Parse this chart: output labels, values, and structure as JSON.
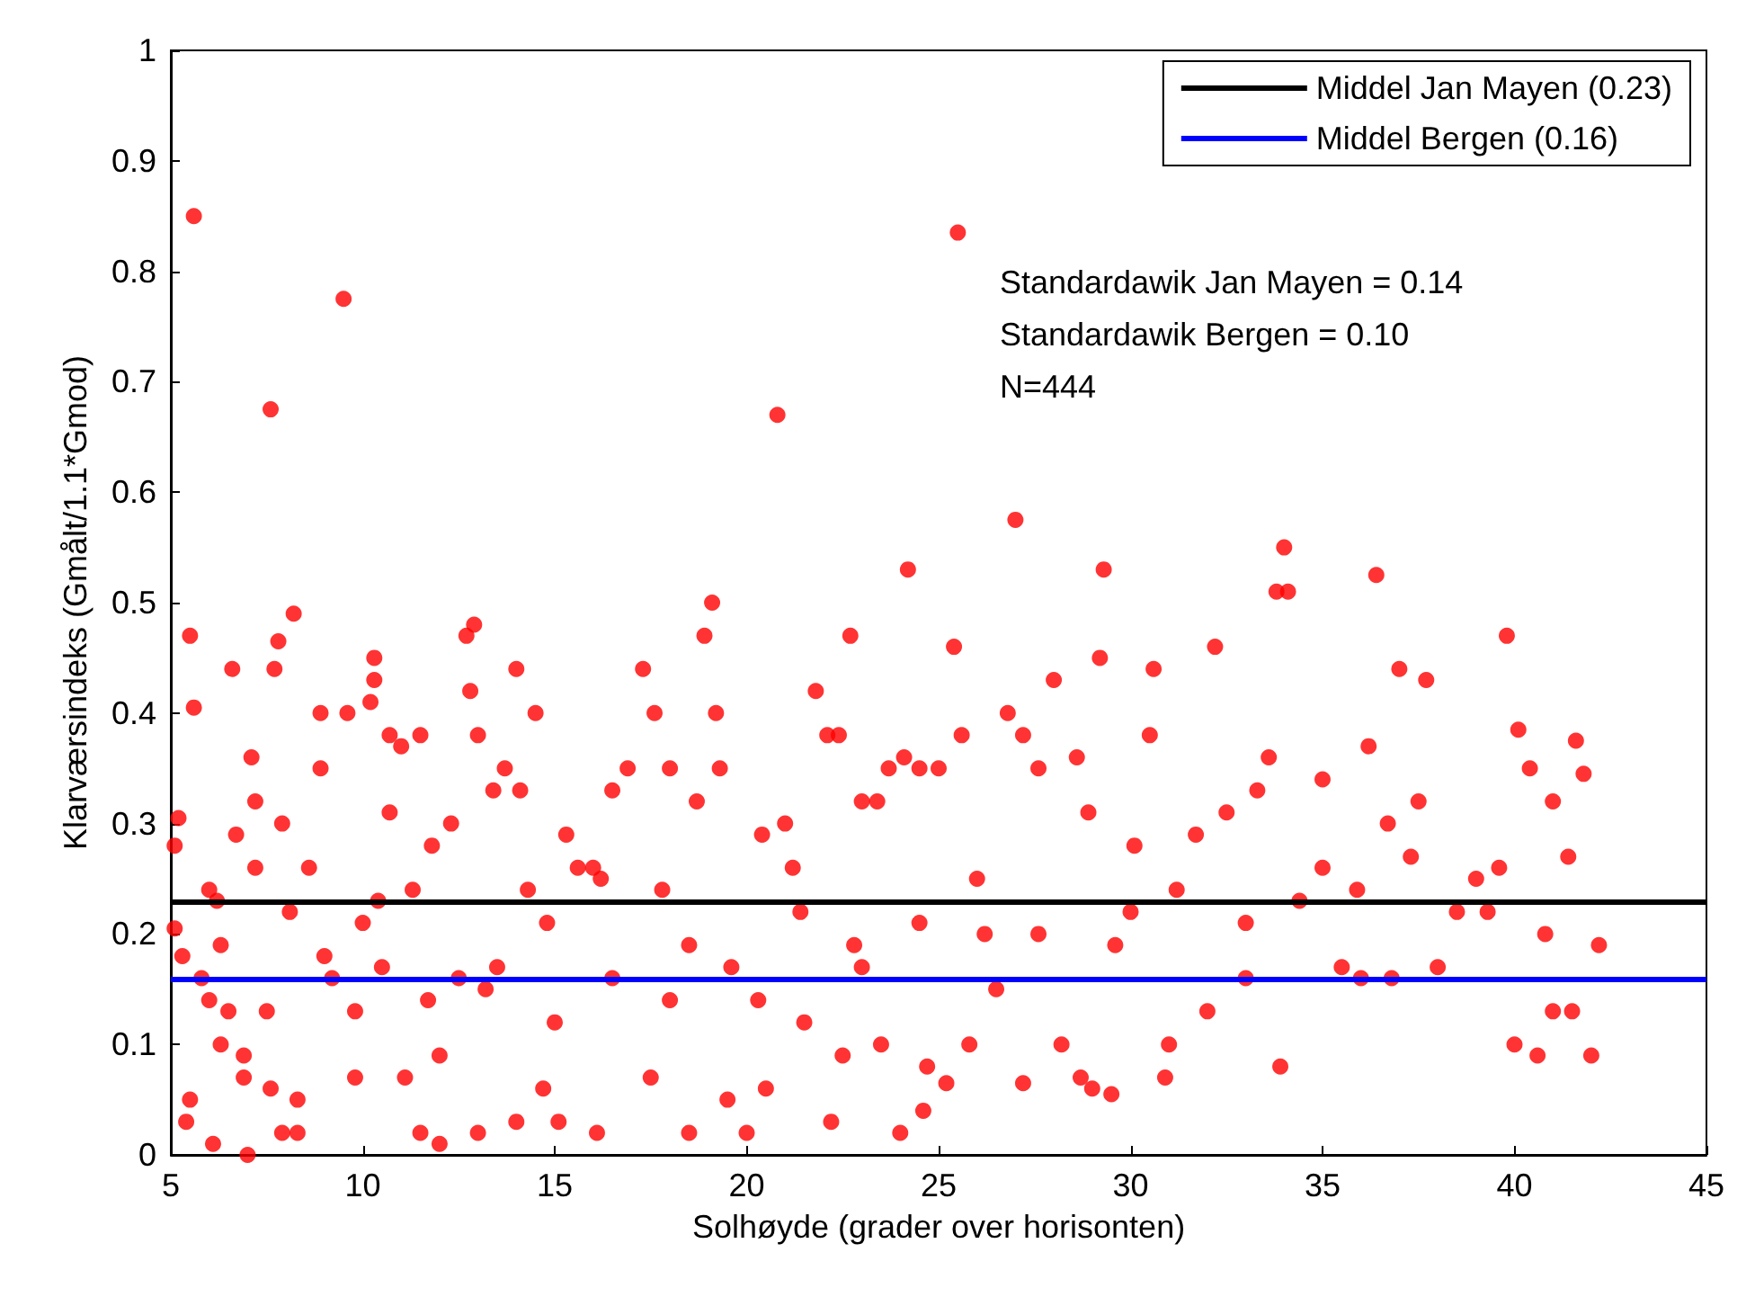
{
  "chart_data": {
    "type": "scatter",
    "xlabel": "Solhøyde (grader over horisonten)",
    "ylabel": "Klarværsindeks (Gmålt/1.1*Gmod)",
    "series": [
      {
        "color": "#ff0000",
        "x": [
          5.1,
          5.2,
          5.1,
          5.3,
          5.5,
          5.6,
          5.6,
          5.5,
          5.4,
          5.8,
          6,
          6,
          6.1,
          6.2,
          6.3,
          6.3,
          6.5,
          6.6,
          6.7,
          6.9,
          7.0,
          7.1,
          7.2,
          7.2,
          7.6,
          7.6,
          7.7,
          7.8,
          7.9,
          7.9,
          8.1,
          8.2,
          8.3,
          8.6,
          8.9,
          8.9,
          9.2,
          9.5,
          9.6,
          9.8,
          9.8,
          10,
          10.2,
          10.3,
          10.3,
          10.4,
          10.5,
          10.7,
          10.7,
          11,
          11.1,
          11.3,
          11.5,
          11.8,
          12,
          12.3,
          12.5,
          12.7,
          12.8,
          12.9,
          13,
          13.2,
          13.4,
          13.7,
          14,
          14.1,
          14.3,
          14.5,
          14.7,
          15,
          15.1,
          15.3,
          15.6,
          16,
          16.2,
          16.5,
          16.9,
          17.3,
          17.6,
          17.8,
          18,
          18.5,
          18.7,
          18.9,
          19.1,
          19.2,
          19.3,
          19.6,
          20,
          20.4,
          20.8,
          21.0,
          21.2,
          21.4,
          21.8,
          22.1,
          22.4,
          22.5,
          22.7,
          23,
          23.4,
          23.7,
          24.1,
          24.2,
          24.5,
          24.6,
          25,
          25.4,
          25.5,
          25.6,
          25.8,
          26,
          26.5,
          26.8,
          27.0,
          27.2,
          27.6,
          28,
          28.2,
          28.6,
          28.9,
          29.2,
          29.3,
          29.6,
          30.1,
          30.5,
          30.6,
          31,
          31.7,
          32.2,
          32.5,
          33,
          33.3,
          33.6,
          33.8,
          34,
          34.1,
          34.4,
          35,
          35.5,
          36.2,
          36.4,
          36.7,
          37.0,
          37.3,
          37.7,
          38,
          38.5,
          39,
          39.8,
          40,
          40.1,
          40.4,
          40.6,
          41,
          41.4,
          41.6,
          41.8,
          42,
          42.2,
          41.5,
          41,
          39.6,
          37.5,
          36.8,
          35.9,
          29.0,
          30.9,
          29.5,
          27.2,
          33.9,
          19.5,
          22.2,
          23.5,
          24.0,
          24.7,
          25.2,
          17.5,
          18.5,
          16.1,
          13,
          11.5,
          8.3,
          6.9,
          12,
          14,
          20.5,
          21.5,
          23,
          28.7,
          32,
          36,
          39.3,
          40.8,
          35,
          33,
          31.2,
          30,
          27.6,
          26.2,
          24.5,
          22.8,
          20.3,
          18,
          16.5,
          14.8,
          13.5,
          11.7,
          9,
          7.5
        ],
        "values": [
          0.28,
          0.305,
          0.205,
          0.18,
          0.47,
          0.85,
          0.405,
          0.05,
          0.03,
          0.16,
          0.24,
          0.14,
          0.01,
          0.23,
          0.19,
          0.1,
          0.13,
          0.44,
          0.29,
          0.07,
          0.0,
          0.36,
          0.32,
          0.26,
          0.675,
          0.06,
          0.44,
          0.465,
          0.3,
          0.02,
          0.22,
          0.49,
          0.05,
          0.26,
          0.4,
          0.35,
          0.16,
          0.775,
          0.4,
          0.13,
          0.07,
          0.21,
          0.41,
          0.45,
          0.43,
          0.23,
          0.17,
          0.38,
          0.31,
          0.37,
          0.07,
          0.24,
          0.38,
          0.28,
          0.01,
          0.3,
          0.16,
          0.47,
          0.42,
          0.48,
          0.38,
          0.15,
          0.33,
          0.35,
          0.44,
          0.33,
          0.24,
          0.4,
          0.06,
          0.12,
          0.03,
          0.29,
          0.26,
          0.26,
          0.25,
          0.33,
          0.35,
          0.44,
          0.4,
          0.24,
          0.35,
          0.19,
          0.32,
          0.47,
          0.5,
          0.4,
          0.35,
          0.17,
          0.02,
          0.29,
          0.67,
          0.3,
          0.26,
          0.22,
          0.42,
          0.38,
          0.38,
          0.09,
          0.47,
          0.32,
          0.32,
          0.35,
          0.36,
          0.53,
          0.35,
          0.04,
          0.35,
          0.46,
          0.835,
          0.38,
          0.1,
          0.25,
          0.15,
          0.4,
          0.575,
          0.38,
          0.35,
          0.43,
          0.1,
          0.36,
          0.31,
          0.45,
          0.53,
          0.19,
          0.28,
          0.38,
          0.44,
          0.1,
          0.29,
          0.46,
          0.31,
          0.16,
          0.33,
          0.36,
          0.51,
          0.55,
          0.51,
          0.23,
          0.34,
          0.17,
          0.37,
          0.525,
          0.3,
          0.44,
          0.27,
          0.43,
          0.17,
          0.22,
          0.25,
          0.47,
          0.1,
          0.385,
          0.35,
          0.09,
          0.32,
          0.27,
          0.375,
          0.345,
          0.09,
          0.19,
          0.13,
          0.13,
          0.26,
          0.32,
          0.16,
          0.24,
          0.06,
          0.07,
          0.055,
          0.065,
          0.08,
          0.05,
          0.03,
          0.1,
          0.02,
          0.08,
          0.065,
          0.07,
          0.02,
          0.02,
          0.02,
          0.02,
          0.02,
          0.09,
          0.09,
          0.03,
          0.06,
          0.12,
          0.17,
          0.07,
          0.13,
          0.16,
          0.22,
          0.2,
          0.26,
          0.21,
          0.24,
          0.22,
          0.2,
          0.2,
          0.21,
          0.19,
          0.14,
          0.14,
          0.16,
          0.21,
          0.17,
          0.14,
          0.18,
          0.13
        ]
      }
    ],
    "xlim": [
      5,
      45
    ],
    "xticks": [
      5,
      10,
      15,
      20,
      25,
      30,
      35,
      40,
      45
    ],
    "ylim": [
      0,
      1
    ],
    "yticks": [
      0,
      0.1,
      0.2,
      0.3,
      0.4,
      0.5,
      0.6,
      0.7,
      0.8,
      0.9,
      1
    ],
    "ref_lines": [
      {
        "axis": "y",
        "value": 0.23,
        "label": "Middel Jan Mayen (0.23)",
        "color": "#000000"
      },
      {
        "axis": "y",
        "value": 0.16,
        "label": "Middel Bergen (0.16)",
        "color": "#0000ff"
      }
    ],
    "annotations": [
      "Standardawik Jan Mayen = 0.14",
      "Standardawik Bergen = 0.10",
      "N=444"
    ],
    "grid": false,
    "legend": "top right",
    "marker": "circle"
  }
}
